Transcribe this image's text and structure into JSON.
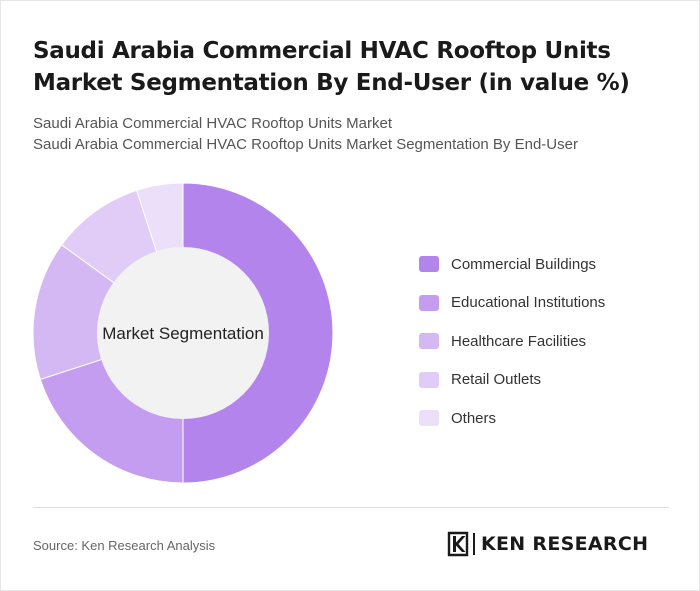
{
  "header": {
    "title": "Saudi Arabia Commercial HVAC Rooftop Units Market Segmentation By End-User (in value %)",
    "subtitle_1": "Saudi Arabia Commercial HVAC Rooftop Units Market",
    "subtitle_2": "Saudi Arabia Commercial HVAC Rooftop Units Market Segmentation By End-User"
  },
  "chart_data": {
    "type": "pie",
    "variant": "donut",
    "center_label": "Market Segmentation",
    "categories": [
      "Commercial Buildings",
      "Educational Institutions",
      "Healthcare Facilities",
      "Retail Outlets",
      "Others"
    ],
    "values": [
      50,
      20,
      15,
      10,
      5
    ],
    "colors": [
      "#b384ec",
      "#c49df0",
      "#d4b8f4",
      "#e0ccf7",
      "#ebdffa"
    ],
    "center_color": "#f2f2f2",
    "legend_position": "right"
  },
  "footer": {
    "source": "Source: Ken Research Analysis",
    "logo_text": "KEN RESEARCH"
  }
}
